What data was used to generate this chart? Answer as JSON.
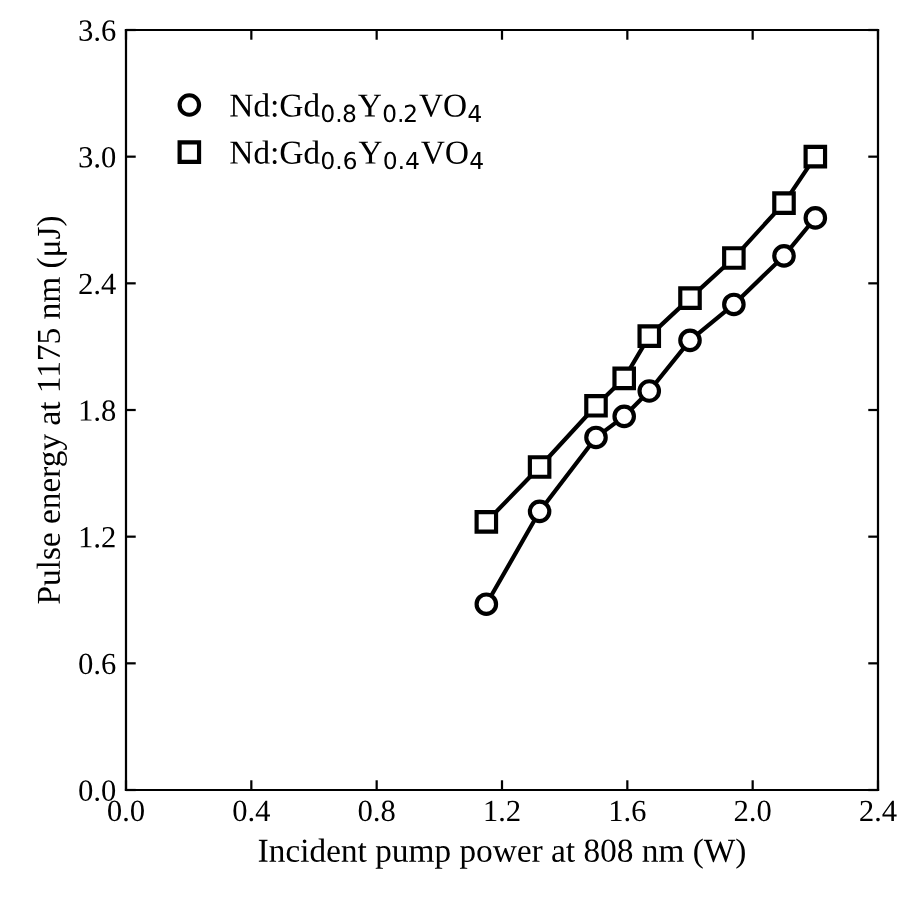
{
  "chart_data": {
    "type": "line",
    "xlabel": "Incident pump power at 808 nm (W)",
    "ylabel": "Pulse energy at 1175 nm (μJ)",
    "x": [
      1.15,
      1.32,
      1.5,
      1.59,
      1.67,
      1.8,
      1.94,
      2.1,
      2.2
    ],
    "series": [
      {
        "name": "Nd:Gd$_{0.8}$Y$_{0.2}$VO$_{4}$",
        "color": "#000000",
        "marker": "circle",
        "values": [
          0.88,
          1.32,
          1.67,
          1.77,
          1.89,
          2.13,
          2.3,
          2.53,
          2.71
        ]
      },
      {
        "name": "Nd:Gd$_{0.6}$Y$_{0.4}$VO$_{4}$",
        "color": "#000000",
        "marker": "square",
        "values": [
          1.27,
          1.53,
          1.82,
          1.95,
          2.15,
          2.33,
          2.52,
          2.78,
          3.0
        ]
      }
    ],
    "xlim": [
      0.0,
      2.4
    ],
    "xticks": [
      {
        "value": 0,
        "label": "0.0"
      },
      0.4,
      0.8,
      1.2,
      1.6,
      {
        "value": 2,
        "label": "2.0"
      },
      2.4
    ],
    "ylim": [
      0.0,
      3.6
    ],
    "yticks": [
      {
        "value": 0,
        "label": "0.0"
      },
      0.6,
      1.2,
      1.8,
      2.4,
      {
        "value": 3,
        "label": "3.0"
      },
      3.6
    ],
    "grid": false,
    "legend": "top left",
    "line_style": "solid"
  }
}
